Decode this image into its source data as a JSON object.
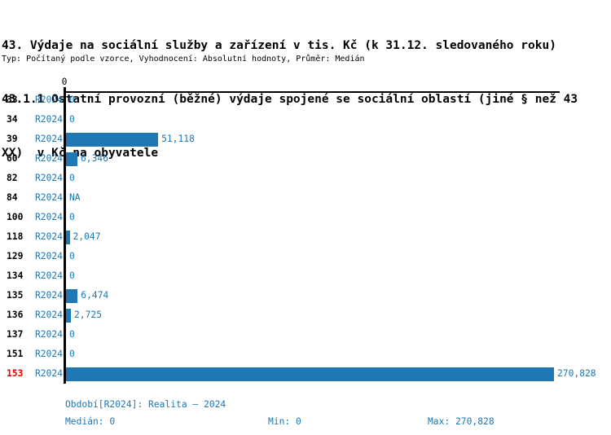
{
  "header": {
    "title_line1": "43. Výdaje na sociální služby a zařízení v tis. Kč (k 31.12. sledovaného roku)",
    "title_line2": "43.1.1 Ostatní provozní (běžné) výdaje spojené se sociální oblastí (jiné § než 43",
    "title_line3": "XX)  v Kč na obyvatele",
    "subtitle": "Typ: Počítaný podle vzorce, Vyhodnocení: Absolutní hodnoty, Průměr: Medián"
  },
  "chart_data": {
    "type": "bar",
    "orientation": "horizontal",
    "title": "43.1.1 Ostatní provozní (běžné) výdaje spojené se sociální oblastí (jiné § než 43 XX) v Kč na obyvatele",
    "xlabel": "",
    "ylabel": "",
    "xlim": [
      0,
      270828
    ],
    "axis_tick_labels": [
      "0"
    ],
    "grid": false,
    "legend": false,
    "bar_color": "#1f77b4",
    "label_color": "#1f77b4",
    "highlight_color": "#e00000",
    "categories": [
      "33",
      "34",
      "39",
      "60",
      "82",
      "84",
      "100",
      "118",
      "129",
      "134",
      "135",
      "136",
      "137",
      "151",
      "153"
    ],
    "series": [
      {
        "name": "R2024",
        "values": [
          0,
          0,
          51118,
          6346,
          0,
          null,
          0,
          2047,
          0,
          0,
          6474,
          2725,
          0,
          0,
          270828
        ]
      }
    ],
    "rows": [
      {
        "category": "33",
        "period": "R2024",
        "value": 0,
        "label": "0",
        "highlight": false
      },
      {
        "category": "34",
        "period": "R2024",
        "value": 0,
        "label": "0",
        "highlight": false
      },
      {
        "category": "39",
        "period": "R2024",
        "value": 51118,
        "label": "51,118",
        "highlight": false
      },
      {
        "category": "60",
        "period": "R2024",
        "value": 6346,
        "label": "6,346",
        "highlight": false
      },
      {
        "category": "82",
        "period": "R2024",
        "value": 0,
        "label": "0",
        "highlight": false
      },
      {
        "category": "84",
        "period": "R2024",
        "value": null,
        "label": "NA",
        "highlight": false
      },
      {
        "category": "100",
        "period": "R2024",
        "value": 0,
        "label": "0",
        "highlight": false
      },
      {
        "category": "118",
        "period": "R2024",
        "value": 2047,
        "label": "2,047",
        "highlight": false
      },
      {
        "category": "129",
        "period": "R2024",
        "value": 0,
        "label": "0",
        "highlight": false
      },
      {
        "category": "134",
        "period": "R2024",
        "value": 0,
        "label": "0",
        "highlight": false
      },
      {
        "category": "135",
        "period": "R2024",
        "value": 6474,
        "label": "6,474",
        "highlight": false
      },
      {
        "category": "136",
        "period": "R2024",
        "value": 2725,
        "label": "2,725",
        "highlight": false
      },
      {
        "category": "137",
        "period": "R2024",
        "value": 0,
        "label": "0",
        "highlight": false
      },
      {
        "category": "151",
        "period": "R2024",
        "value": 0,
        "label": "0",
        "highlight": false
      },
      {
        "category": "153",
        "period": "R2024",
        "value": 270828,
        "label": "270,828",
        "highlight": true
      }
    ]
  },
  "footer": {
    "period_info": "Období[R2024]: Realita – 2024",
    "median": "Medián: 0",
    "min": "Min: 0",
    "max": "Max: 270,828"
  }
}
